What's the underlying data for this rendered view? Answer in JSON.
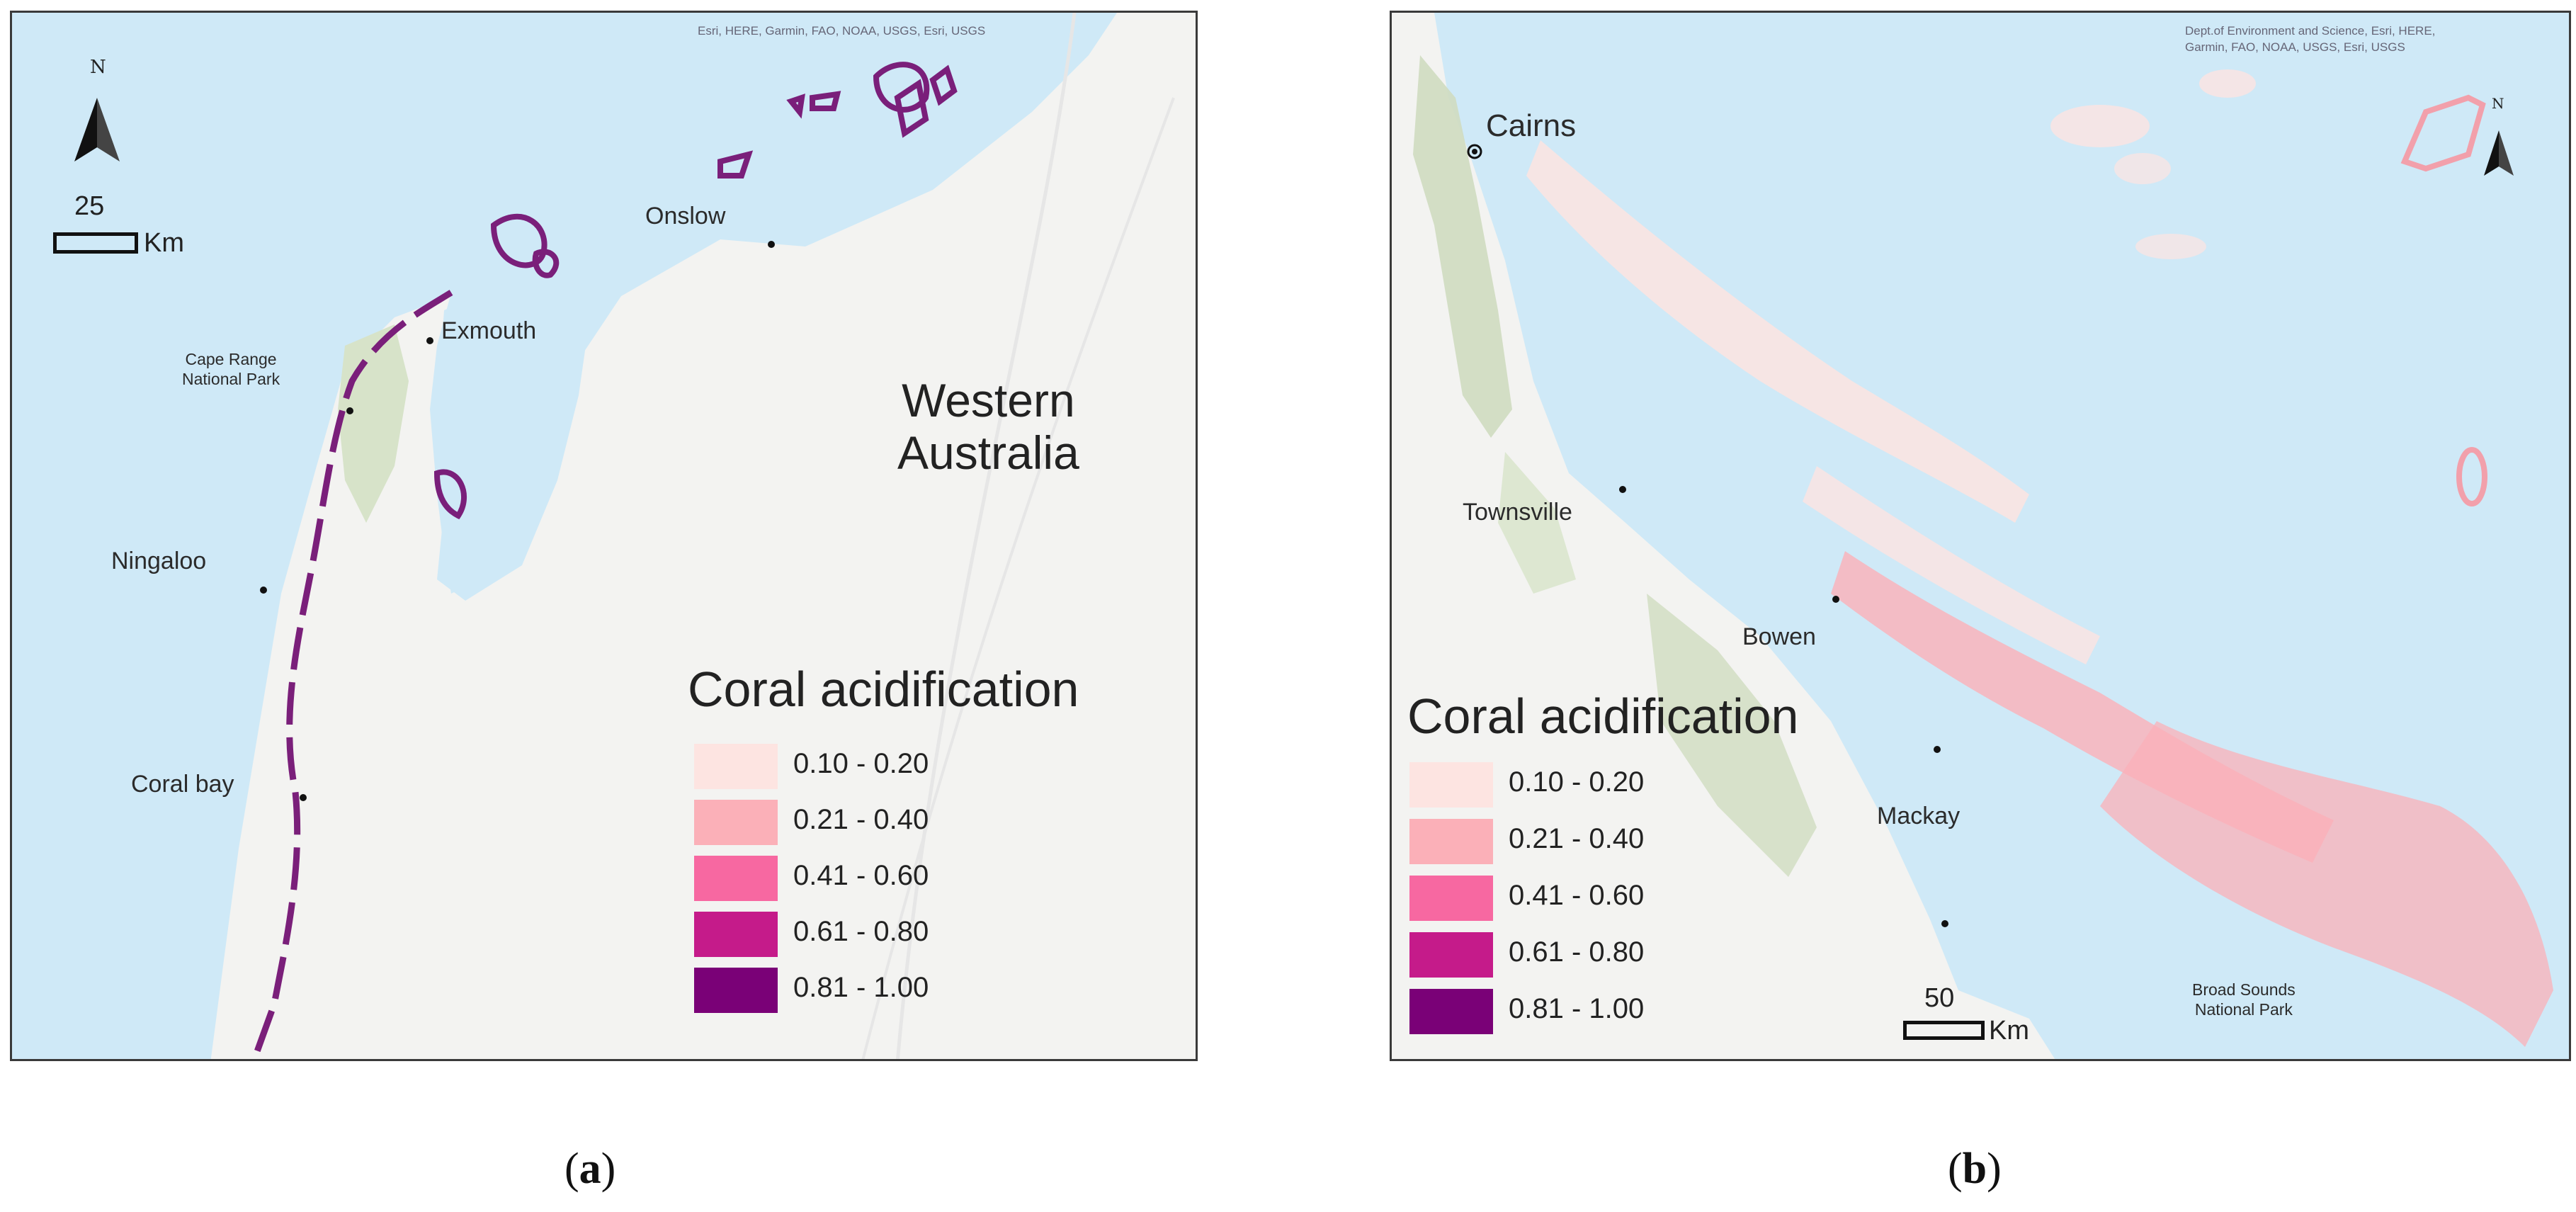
{
  "panels": {
    "a": {
      "attribution": "Esri, HERE, Garmin, FAO, NOAA, USGS, Esri, USGS",
      "places": {
        "onslow": "Onslow",
        "exmouth": "Exmouth",
        "cape_range": "Cape Range\nNational Park",
        "ningaloo": "Ningaloo",
        "coral_bay": "Coral bay"
      },
      "region_label": "Western\nAustralia",
      "north": "N",
      "scale": {
        "value": "25",
        "unit": "Km"
      },
      "caption_letter": "a"
    },
    "b": {
      "attribution": "Dept.of Environment and Science, Esri, HERE,\nGarmin, FAO, NOAA, USGS, Esri, USGS",
      "places": {
        "cairns": "Cairns",
        "townsville": "Townsville",
        "bowen": "Bowen",
        "mackay": "Mackay",
        "broad_sounds": "Broad Sounds\nNational Park"
      },
      "north": "N",
      "scale": {
        "value": "50",
        "unit": "Km"
      },
      "caption_letter": "b"
    }
  },
  "legend": {
    "title": "Coral acidification",
    "classes": [
      {
        "label": "0.10 - 0.20",
        "color": "#fde4e1"
      },
      {
        "label": "0.21 - 0.40",
        "color": "#fbb0b8"
      },
      {
        "label": "0.41 - 0.60",
        "color": "#f768a1"
      },
      {
        "label": "0.61 - 0.80",
        "color": "#c51b8a"
      },
      {
        "label": "0.81 - 1.00",
        "color": "#7a0177"
      }
    ]
  },
  "colors": {
    "ocean": "#cfe9f7",
    "land": "#f3f3f1",
    "vegetation": "#cfdcc0"
  }
}
